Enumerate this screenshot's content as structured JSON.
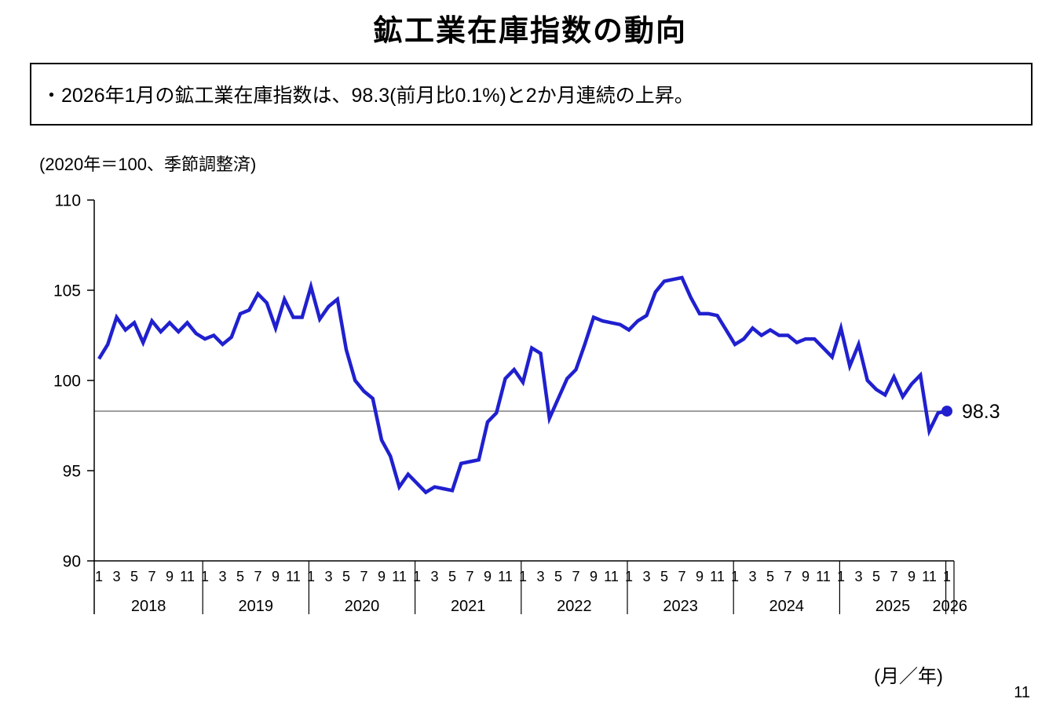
{
  "page": {
    "title": "鉱工業在庫指数の動向",
    "page_number": "11"
  },
  "note": {
    "text": "・2026年1月の鉱工業在庫指数は、98.3(前月比0.1%)と2か月連続の上昇。"
  },
  "chart_data": {
    "type": "line",
    "title": "鉱工業在庫指数の動向",
    "axis_unit_note": "(2020年＝100、季節調整済)",
    "x_axis_unit_label": "(月／年)",
    "ylim": [
      90,
      110
    ],
    "yticks": [
      110,
      105,
      100,
      95,
      90
    ],
    "month_tick_labels": [
      "1",
      "3",
      "5",
      "7",
      "9",
      "11"
    ],
    "years": [
      "2018",
      "2019",
      "2020",
      "2021",
      "2022",
      "2023",
      "2024",
      "2025",
      "2026"
    ],
    "grid": false,
    "legend_position": "none",
    "reference_line_value": 98.3,
    "last_value_label": "98.3",
    "line_color": "#2020cf",
    "marker_color": "#2020cf",
    "reference_line_color": "#808080",
    "series": [
      {
        "start": "2018-01",
        "end": "2026-01",
        "values_by_year": {
          "2018": [
            101.2,
            102.0,
            103.5,
            102.8,
            103.2,
            102.1,
            103.3,
            102.7,
            103.2,
            102.7,
            103.2,
            102.6
          ],
          "2019": [
            102.3,
            102.5,
            102.0,
            102.4,
            103.7,
            103.9,
            104.8,
            104.3,
            102.9,
            104.5,
            103.5,
            103.5
          ],
          "2020": [
            105.2,
            103.4,
            104.1,
            104.5,
            101.7,
            100.0,
            99.4,
            99.0,
            96.7,
            95.8,
            94.1,
            94.8
          ],
          "2021": [
            94.3,
            93.8,
            94.1,
            94.0,
            93.9,
            95.4,
            95.5,
            95.6,
            97.7,
            98.2,
            100.1,
            100.6
          ],
          "2022": [
            99.9,
            101.8,
            101.5,
            97.9,
            99.0,
            100.1,
            100.6,
            102.0,
            103.5,
            103.3,
            103.2,
            103.1
          ],
          "2023": [
            102.8,
            103.3,
            103.6,
            104.9,
            105.5,
            105.6,
            105.7,
            104.6,
            103.7,
            103.7,
            103.6,
            102.8
          ],
          "2024": [
            102.0,
            102.3,
            102.9,
            102.5,
            102.8,
            102.5,
            102.5,
            102.1,
            102.3,
            102.3,
            101.8,
            101.3
          ],
          "2025": [
            102.9,
            100.8,
            102.0,
            100.0,
            99.5,
            99.2,
            100.2,
            99.1,
            99.8,
            100.3,
            97.2,
            98.2
          ],
          "2026": [
            98.3
          ]
        }
      }
    ]
  }
}
